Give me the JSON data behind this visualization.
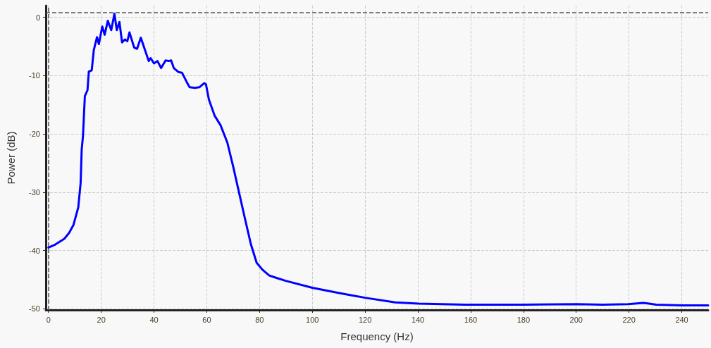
{
  "chart_data": {
    "type": "line",
    "xlabel": "Frequency (Hz)",
    "ylabel": "Power (dB)",
    "xlim": [
      -1,
      250
    ],
    "xticks": [
      0,
      20,
      40,
      60,
      80,
      100,
      120,
      140,
      160,
      180,
      200,
      220,
      240
    ],
    "ylim": [
      -50.2,
      2
    ],
    "yticks": [
      0,
      -10,
      -20,
      -30,
      -40,
      -50
    ],
    "grid": true,
    "marker": "none",
    "line_style": "solid",
    "ref_lines": [
      {
        "axis": "y",
        "value": 0.8,
        "color": "#555555",
        "line_style": "dashed"
      },
      {
        "axis": "x",
        "value": 0,
        "color": "#555555",
        "line_style": "dashed"
      }
    ],
    "series": [
      {
        "color": "#0000ff",
        "x": [
          0,
          2.5,
          6,
          7.8,
          9.5,
          11.3,
          12.2,
          12.6,
          13.1,
          13.8,
          14.8,
          15.3,
          16.4,
          17.2,
          18.4,
          19.1,
          20.4,
          21.3,
          22.5,
          23.8,
          25,
          25.9,
          26.9,
          27.9,
          29,
          29.9,
          30.7,
          32.5,
          33.6,
          35,
          36.5,
          38,
          38.7,
          40,
          41.3,
          42.7,
          44.4,
          45.6,
          46.5,
          47.5,
          49.3,
          50.6,
          52.4,
          53.5,
          55.5,
          57.2,
          59,
          59.7,
          60.8,
          63,
          65.2,
          67.8,
          70,
          72.2,
          74.4,
          76.7,
          78.9,
          81.1,
          83.7,
          86.4,
          89.9,
          100,
          110.2,
          119.9,
          131.4,
          140.2,
          157.9,
          180,
          200.3,
          210,
          219.7,
          225.4,
          227.6,
          230.3,
          240,
          250
        ],
        "values": [
          -39.5,
          -39,
          -38,
          -37,
          -35.6,
          -32.6,
          -28.4,
          -22.7,
          -20.3,
          -13.5,
          -12.5,
          -9.3,
          -9.1,
          -5.6,
          -3.4,
          -4.6,
          -1.6,
          -3,
          -0.6,
          -2.2,
          0.6,
          -2.2,
          -0.8,
          -4.3,
          -3.8,
          -4.1,
          -2.6,
          -5.2,
          -5.4,
          -3.5,
          -5.5,
          -7.5,
          -7,
          -7.9,
          -7.5,
          -8.7,
          -7.4,
          -7.5,
          -7.4,
          -8.7,
          -9.4,
          -9.5,
          -11.1,
          -12,
          -12.1,
          -12,
          -11.3,
          -11.5,
          -14.1,
          -16.9,
          -18.5,
          -21.5,
          -25.6,
          -30,
          -34.4,
          -38.9,
          -42.1,
          -43.3,
          -44.3,
          -44.7,
          -45.2,
          -46.4,
          -47.3,
          -48.1,
          -48.9,
          -49.1,
          -49.3,
          -49.3,
          -49.2,
          -49.3,
          -49.2,
          -49,
          -49.1,
          -49.3,
          -49.4,
          -49.4
        ]
      }
    ]
  }
}
